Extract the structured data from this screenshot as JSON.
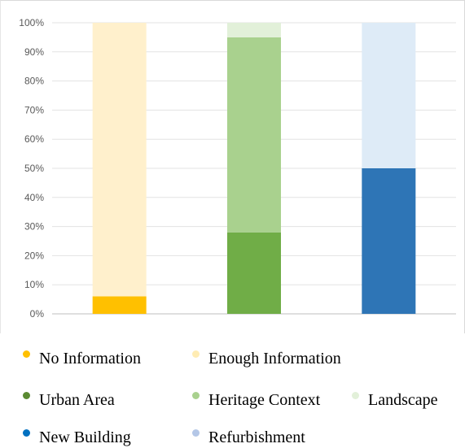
{
  "chart_data": {
    "type": "bar",
    "stacked": true,
    "categories": [
      "",
      "",
      ""
    ],
    "yticks": [
      "0%",
      "10%",
      "20%",
      "30%",
      "40%",
      "50%",
      "60%",
      "70%",
      "80%",
      "90%",
      "100%"
    ],
    "ylim": [
      0,
      100
    ],
    "grid": true,
    "series": [
      {
        "name": "No Information",
        "color": "#FFC000",
        "values": [
          6,
          0,
          0
        ]
      },
      {
        "name": "Enough Information",
        "color": "#FFF0CC",
        "values": [
          94,
          0,
          0
        ]
      },
      {
        "name": "Urban Area",
        "color": "#70AD47",
        "values": [
          0,
          28,
          0
        ]
      },
      {
        "name": "Heritage Context",
        "color": "#A9D18E",
        "values": [
          0,
          67,
          0
        ]
      },
      {
        "name": "Landscape",
        "color": "#E2F0D9",
        "values": [
          0,
          5,
          0
        ]
      },
      {
        "name": "New Building",
        "color": "#2E75B6",
        "values": [
          0,
          0,
          50
        ]
      },
      {
        "name": "Refurbishment",
        "color": "#DEEBF7",
        "values": [
          0,
          0,
          50
        ]
      }
    ],
    "legend_placement": "bottom"
  },
  "legend": {
    "items": [
      {
        "label": "No Information",
        "color": "#FFC000"
      },
      {
        "label": "Enough Information",
        "color": "#FFECB3"
      },
      {
        "label": "Urban Area",
        "color": "#5A8A32"
      },
      {
        "label": "Heritage Context",
        "color": "#A9D18E"
      },
      {
        "label": "Landscape",
        "color": "#E2F0D9"
      },
      {
        "label": "New Building",
        "color": "#0070C0"
      },
      {
        "label": "Refurbishment",
        "color": "#B4C7E7"
      }
    ]
  }
}
